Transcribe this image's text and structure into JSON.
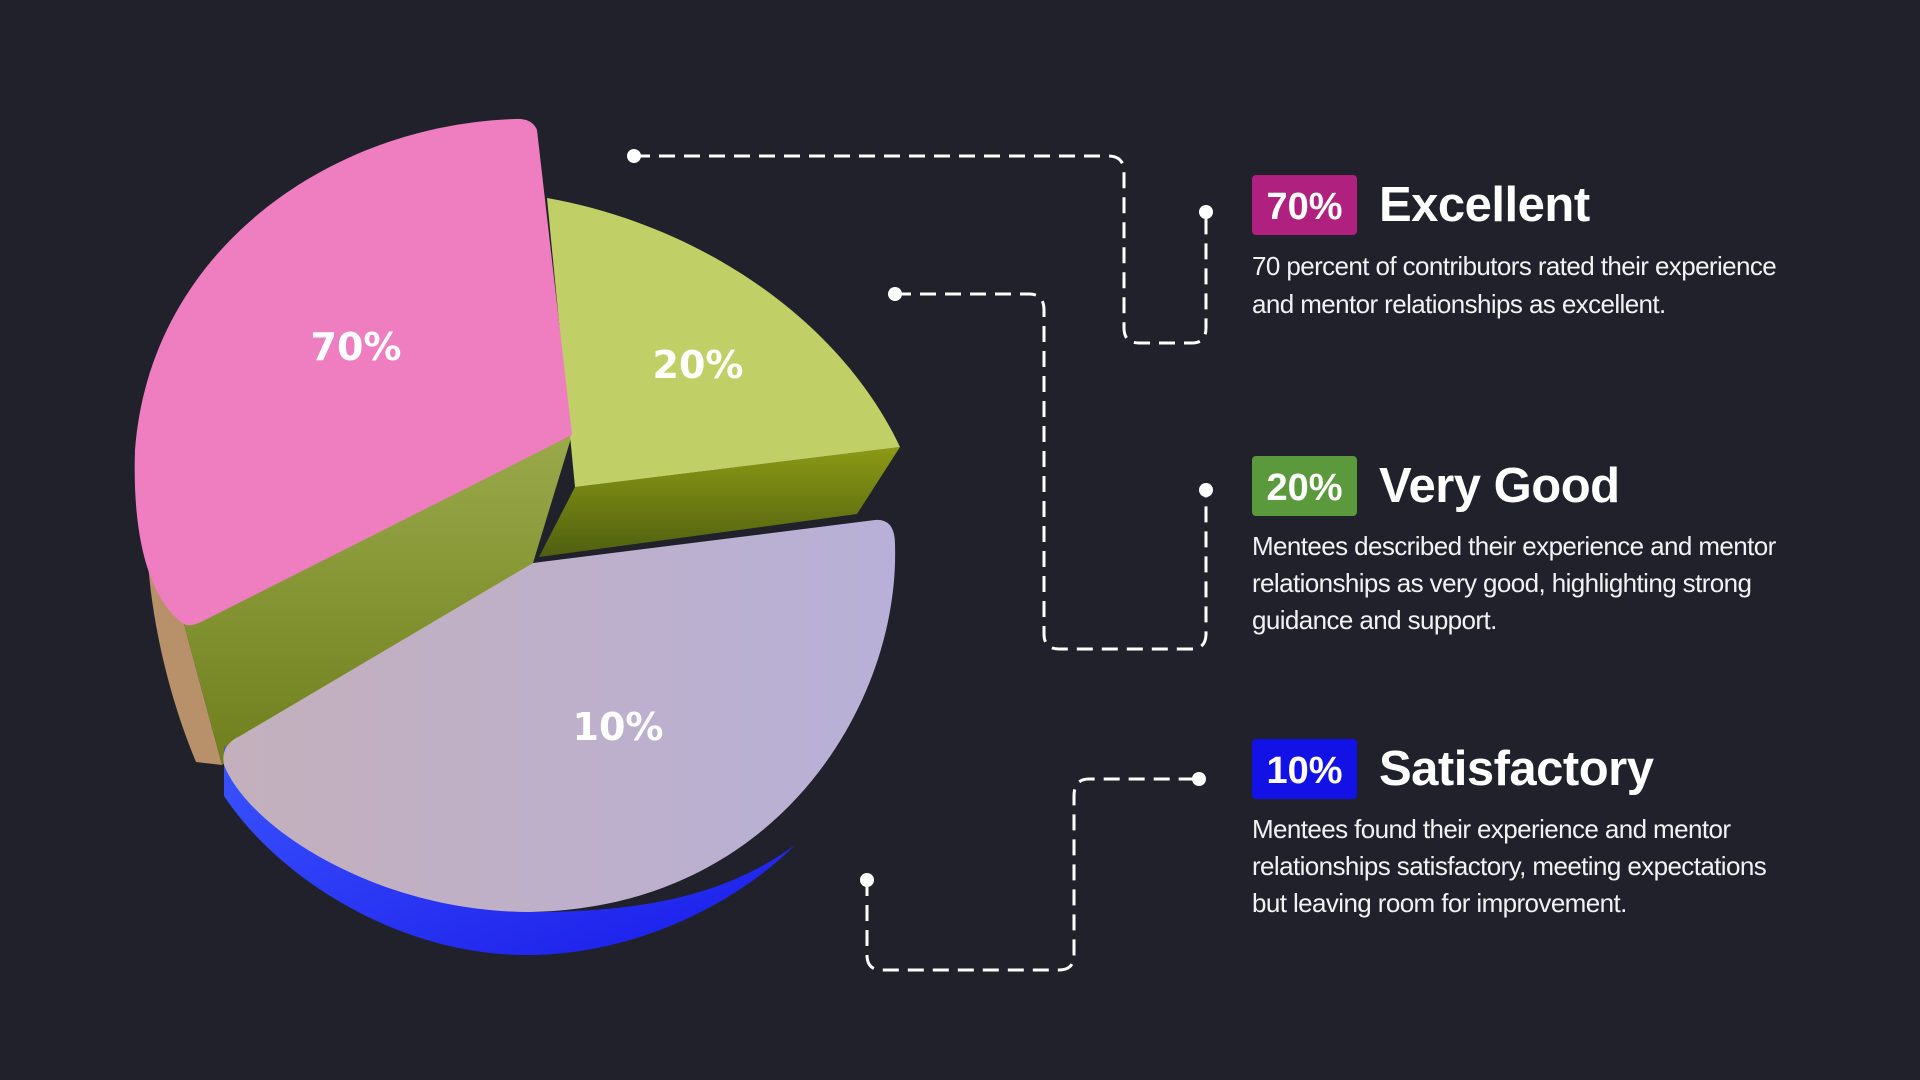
{
  "chart_data": {
    "type": "pie",
    "style": "3d",
    "categories": [
      "Excellent",
      "Very Good",
      "Satisfactory"
    ],
    "values": [
      70,
      20,
      10
    ],
    "labels": [
      "70%",
      "20%",
      "10%"
    ],
    "colors": [
      "#ee7ec0",
      "#c0cf66",
      "#c0b4c8"
    ]
  },
  "legend": [
    {
      "badge": "70%",
      "title": "Excellent",
      "color": "#b0207e",
      "description": "70 percent of contributors rated their experience and mentor relationships as excellent."
    },
    {
      "badge": "20%",
      "title": "Very Good",
      "color": "#5b9a3c",
      "description": "Mentees described their experience and mentor relationships as very good, highlighting strong guidance and support."
    },
    {
      "badge": "10%",
      "title": "Satisfactory",
      "color": "#1212e6",
      "description": "Mentees found their experience and mentor relationships satisfactory, meeting expectations but leaving room for improvement."
    }
  ]
}
